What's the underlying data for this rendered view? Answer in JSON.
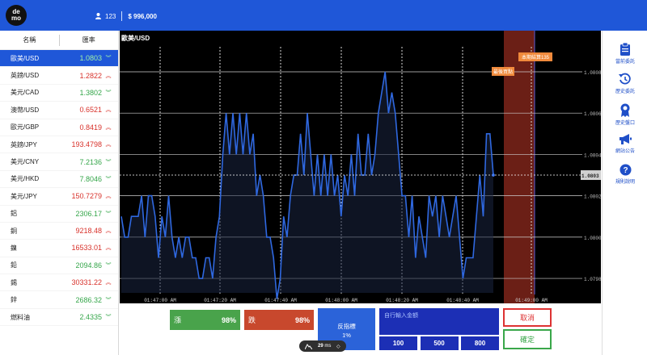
{
  "header": {
    "logo_text": "de\nmo",
    "user_id": "123",
    "balance": "$ 996,000"
  },
  "list": {
    "col_name": "名稱",
    "col_rate": "匯率",
    "items": [
      {
        "name": "歐美/USD",
        "price": "1.0803",
        "dir": "down",
        "selected": true,
        "color": "#35a64a"
      },
      {
        "name": "英鎊/USD",
        "price": "1.2822",
        "dir": "up",
        "color": "#d8312a"
      },
      {
        "name": "美元/CAD",
        "price": "1.3802",
        "dir": "down",
        "color": "#35a64a"
      },
      {
        "name": "澳幣/USD",
        "price": "0.6521",
        "dir": "up",
        "color": "#d8312a"
      },
      {
        "name": "歐元/GBP",
        "price": "0.8419",
        "dir": "up",
        "color": "#d8312a"
      },
      {
        "name": "英鎊/JPY",
        "price": "193.4798",
        "dir": "up",
        "color": "#d8312a"
      },
      {
        "name": "美元/CNY",
        "price": "7.2136",
        "dir": "down",
        "color": "#35a64a"
      },
      {
        "name": "美元/HKD",
        "price": "7.8046",
        "dir": "down",
        "color": "#35a64a"
      },
      {
        "name": "美元/JPY",
        "price": "150.7279",
        "dir": "up",
        "color": "#d8312a"
      },
      {
        "name": "鋁",
        "price": "2306.17",
        "dir": "down",
        "color": "#35a64a"
      },
      {
        "name": "銅",
        "price": "9218.48",
        "dir": "up",
        "color": "#d8312a"
      },
      {
        "name": "鎳",
        "price": "16533.01",
        "dir": "up",
        "color": "#d8312a"
      },
      {
        "name": "鉛",
        "price": "2094.86",
        "dir": "down",
        "color": "#35a64a"
      },
      {
        "name": "錫",
        "price": "30331.22",
        "dir": "up",
        "color": "#d8312a"
      },
      {
        "name": "鋅",
        "price": "2686.32",
        "dir": "down",
        "color": "#35a64a"
      },
      {
        "name": "燃料油",
        "price": "2.4335",
        "dir": "down",
        "color": "#35a64a"
      }
    ]
  },
  "chart": {
    "title": "歐美/USD",
    "label_settle": "本期結算135",
    "label_last": "最後買點",
    "current_price": "1.0803",
    "yticks": [
      "1.0808",
      "1.0806",
      "1.0804",
      "1.0802",
      "1.0800",
      "1.0798"
    ],
    "xticks": [
      "01:47:00 AM",
      "01:47:20 AM",
      "01:47:40 AM",
      "01:48:00 AM",
      "01:48:20 AM",
      "01:48:40 AM",
      "01:49:00 AM"
    ]
  },
  "chart_data": {
    "type": "area",
    "title": "歐美/USD",
    "ylim": [
      1.07973,
      1.08096
    ],
    "y": [
      1.0801,
      1.08,
      1.08,
      1.0801,
      1.0801,
      1.0801,
      1.0802,
      1.08,
      1.0802,
      1.0802,
      1.0801,
      1.0799,
      1.0801,
      1.08,
      1.0802,
      1.08,
      1.0799,
      1.08,
      1.0799,
      1.08,
      1.08,
      1.0799,
      1.0799,
      1.0798,
      1.0798,
      1.0799,
      1.0799,
      1.0798,
      1.08,
      1.0801,
      1.0804,
      1.0806,
      1.0804,
      1.0806,
      1.0804,
      1.0806,
      1.0804,
      1.0806,
      1.0804,
      1.0805,
      1.0802,
      1.0803,
      1.0802,
      1.08,
      1.08,
      1.0799,
      1.0797,
      1.0798,
      1.0801,
      1.08,
      1.0802,
      1.0803,
      1.0803,
      1.0805,
      1.0803,
      1.0806,
      1.0804,
      1.0802,
      1.0804,
      1.0802,
      1.0804,
      1.0802,
      1.0804,
      1.0802,
      1.0803,
      1.0801,
      1.0803,
      1.0802,
      1.0804,
      1.0802,
      1.0805,
      1.0803,
      1.0803,
      1.0805,
      1.0803,
      1.0804,
      1.0806,
      1.0807,
      1.0808,
      1.0806,
      1.0807,
      1.0806,
      1.0804,
      1.0802,
      1.0802,
      1.08,
      1.0802,
      1.0799,
      1.0801,
      1.08,
      1.0799,
      1.0802,
      1.0801,
      1.0802,
      1.08,
      1.0802,
      1.0801,
      1.08,
      1.0801,
      1.0802,
      1.08,
      1.0798,
      1.0799,
      1.0799,
      1.0799,
      1.0801,
      1.0803,
      1.0801,
      1.0805,
      1.0805,
      1.0803
    ]
  },
  "trade": {
    "up_label": "漲",
    "up_pct": "98%",
    "down_label": "跌",
    "down_pct": "98%",
    "reverse_label": "反指標",
    "reverse_pct": "1%",
    "amount_placeholder": "自行輸入金額",
    "amounts": [
      "100",
      "500",
      "800"
    ],
    "cancel": "取消",
    "confirm": "確定"
  },
  "sidebar": {
    "items": [
      {
        "label": "當前委託",
        "icon": "clipboard-icon"
      },
      {
        "label": "歷史委託",
        "icon": "history-icon"
      },
      {
        "label": "歷史盤口",
        "icon": "award-icon"
      },
      {
        "label": "網站公告",
        "icon": "megaphone-icon"
      },
      {
        "label": "規則說明",
        "icon": "help-icon"
      }
    ]
  },
  "zoom": {
    "value": "29",
    "unit": "ms"
  },
  "colors": {
    "brand": "#1f57d8",
    "up": "#49a34b",
    "down": "#c8482d",
    "line": "#2f68e0",
    "settle_zone": "#6b1f16"
  }
}
